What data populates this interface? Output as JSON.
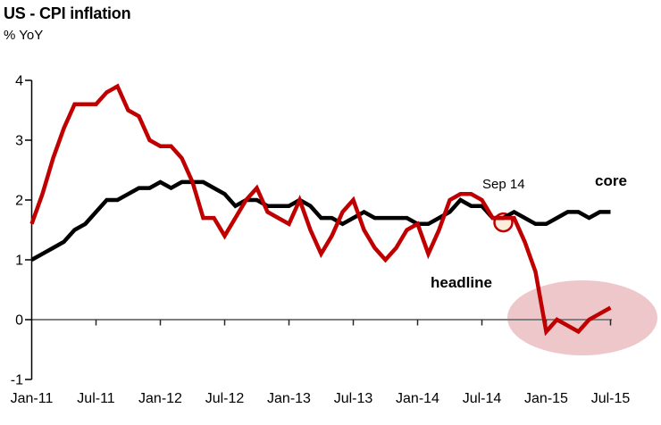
{
  "header": {
    "title": "US - CPI inflation",
    "subtitle": "% YoY"
  },
  "chart_data": {
    "type": "line",
    "title": "US - CPI inflation",
    "ylabel": "% YoY",
    "x_frequency": "monthly",
    "xlim": [
      "Jan-11",
      "Jul-15"
    ],
    "ylim": [
      -1,
      4
    ],
    "grid": "zero-line only",
    "legend": "inline series labels",
    "x_tick_labels": [
      "Jan-11",
      "Jul-11",
      "Jan-12",
      "Jul-12",
      "Jan-13",
      "Jul-13",
      "Jan-14",
      "Jul-14",
      "Jan-15",
      "Jul-15"
    ],
    "y_tick_labels": [
      "4",
      "3",
      "2",
      "1",
      "0",
      "-1"
    ],
    "series": [
      {
        "name": "core",
        "color": "#000000",
        "values": [
          1.0,
          1.1,
          1.2,
          1.3,
          1.5,
          1.6,
          1.8,
          2.0,
          2.0,
          2.1,
          2.2,
          2.2,
          2.3,
          2.2,
          2.3,
          2.3,
          2.3,
          2.2,
          2.1,
          1.9,
          2.0,
          2.0,
          1.9,
          1.9,
          1.9,
          2.0,
          1.9,
          1.7,
          1.7,
          1.6,
          1.7,
          1.8,
          1.7,
          1.7,
          1.7,
          1.7,
          1.6,
          1.6,
          1.7,
          1.8,
          2.0,
          1.9,
          1.9,
          1.7,
          1.7,
          1.8,
          1.7,
          1.6,
          1.6,
          1.7,
          1.8,
          1.8,
          1.7,
          1.8,
          1.8
        ]
      },
      {
        "name": "headline",
        "color": "#c00000",
        "values": [
          1.6,
          2.1,
          2.7,
          3.2,
          3.6,
          3.6,
          3.6,
          3.8,
          3.9,
          3.5,
          3.4,
          3.0,
          2.9,
          2.9,
          2.7,
          2.3,
          1.7,
          1.7,
          1.4,
          1.7,
          2.0,
          2.2,
          1.8,
          1.7,
          1.6,
          2.0,
          1.5,
          1.1,
          1.4,
          1.8,
          2.0,
          1.5,
          1.2,
          1.0,
          1.2,
          1.5,
          1.6,
          1.1,
          1.5,
          2.0,
          2.1,
          2.1,
          2.0,
          1.7,
          1.7,
          1.7,
          1.3,
          0.8,
          -0.2,
          0.0,
          -0.1,
          -0.2,
          0.0,
          0.1,
          0.2
        ]
      }
    ],
    "annotations": [
      {
        "type": "point-callout",
        "label": "Sep 14",
        "series": "headline",
        "month_index": 44,
        "value": 1.7,
        "marker_fill": "#fcecdc",
        "marker_stroke": "#c00000"
      },
      {
        "type": "series-label",
        "text": "core",
        "series": "core"
      },
      {
        "type": "series-label",
        "text": "headline",
        "series": "headline"
      },
      {
        "type": "highlight-ellipse",
        "color": "#edc7ca",
        "note": "highlights headline inflation near/below zero in 2015"
      }
    ],
    "colors": {
      "zero_line": "#7f7f7f",
      "axis": "#000000"
    }
  }
}
